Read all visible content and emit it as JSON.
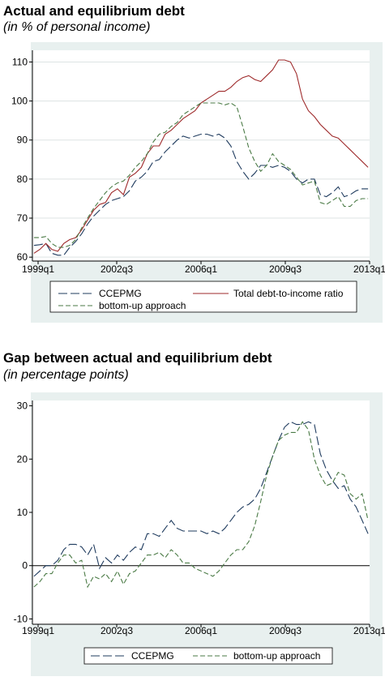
{
  "chart_data": [
    {
      "type": "line",
      "title": "Actual and equilibrium debt",
      "subtitle": "(in % of personal income)",
      "x_ticks": [
        "1999q1",
        "2002q3",
        "2006q1",
        "2009q3",
        "2013q1"
      ],
      "y_ticks": [
        60,
        70,
        80,
        90,
        100,
        110
      ],
      "xlim": [
        0,
        56
      ],
      "ylim": [
        59,
        113
      ],
      "grid": true,
      "legend": "bottom",
      "series": [
        {
          "name": "CCEPMG",
          "style": "longdash",
          "color": "#1f3b5e",
          "values": [
            63.0,
            63.2,
            63.5,
            61.0,
            60.5,
            60.5,
            62.5,
            64.0,
            66.0,
            68.5,
            70.5,
            72.0,
            73.5,
            74.5,
            75.0,
            75.5,
            77.0,
            79.5,
            80.5,
            82.0,
            84.5,
            85.0,
            87.0,
            88.5,
            90.0,
            91.0,
            90.5,
            91.0,
            91.5,
            91.5,
            91.0,
            91.5,
            90.5,
            88.5,
            84.5,
            82.0,
            80.0,
            81.5,
            83.5,
            83.5,
            83.0,
            83.5,
            83.0,
            82.0,
            80.0,
            79.0,
            80.0,
            80.0,
            76.0,
            75.5,
            76.5,
            78.0,
            75.5,
            76.0,
            77.0,
            77.5,
            77.5
          ]
        },
        {
          "name": "Total debt-to-income ratio",
          "style": "solid",
          "color": "#9e2a2b",
          "values": [
            61.0,
            62.0,
            63.5,
            62.0,
            61.5,
            63.5,
            64.5,
            65.0,
            67.0,
            69.5,
            72.0,
            73.5,
            74.0,
            76.5,
            77.5,
            76.0,
            80.5,
            81.5,
            83.0,
            86.5,
            88.5,
            88.5,
            91.5,
            92.5,
            94.0,
            95.5,
            96.5,
            97.5,
            99.5,
            100.5,
            101.5,
            102.5,
            102.5,
            103.5,
            105.0,
            106.0,
            106.5,
            105.5,
            105.0,
            106.5,
            108.0,
            110.5,
            110.5,
            110.0,
            107.0,
            100.5,
            97.5,
            96.0,
            94.0,
            92.5,
            91.0,
            90.5,
            89.0,
            87.5,
            86.0,
            84.5,
            83.0
          ]
        },
        {
          "name": "bottom-up approach",
          "style": "dash",
          "color": "#4a7a45",
          "values": [
            65.0,
            65.0,
            65.3,
            63.5,
            62.5,
            62.5,
            63.0,
            64.5,
            67.5,
            70.0,
            72.5,
            74.5,
            76.5,
            78.0,
            79.0,
            79.5,
            81.0,
            83.0,
            84.5,
            86.5,
            89.5,
            91.5,
            92.0,
            93.5,
            94.5,
            96.5,
            97.5,
            98.5,
            99.5,
            99.5,
            99.5,
            99.5,
            99.0,
            99.5,
            98.5,
            93.5,
            88.0,
            84.5,
            82.0,
            83.5,
            86.5,
            84.5,
            83.5,
            82.5,
            80.5,
            78.5,
            79.0,
            79.5,
            74.0,
            73.5,
            74.5,
            75.5,
            73.0,
            73.0,
            74.5,
            75.0,
            75.0
          ]
        }
      ]
    },
    {
      "type": "line",
      "title": "Gap between actual and equilibrium debt",
      "subtitle": "(in percentage points)",
      "x_ticks": [
        "1999q1",
        "2002q3",
        "2006q1",
        "2009q3",
        "2013q1"
      ],
      "y_ticks": [
        -10,
        0,
        10,
        20,
        30
      ],
      "xlim": [
        0,
        56
      ],
      "ylim": [
        -11,
        31
      ],
      "zero_line": true,
      "legend": "bottom",
      "series": [
        {
          "name": "CCEPMG",
          "style": "longdash",
          "color": "#1f3b5e",
          "values": [
            -2.0,
            -1.0,
            0.0,
            0.0,
            1.0,
            3.0,
            4.0,
            4.0,
            3.5,
            2.0,
            4.0,
            -0.5,
            1.5,
            0.5,
            2.0,
            1.0,
            2.5,
            3.5,
            3.0,
            6.0,
            6.0,
            5.5,
            7.0,
            8.5,
            7.0,
            6.5,
            6.5,
            6.5,
            6.5,
            6.0,
            6.5,
            6.0,
            7.0,
            8.5,
            10.0,
            11.0,
            11.5,
            12.5,
            14.5,
            17.5,
            20.5,
            23.5,
            26.0,
            27.0,
            26.5,
            26.5,
            27.0,
            26.5,
            21.0,
            18.0,
            16.0,
            14.5,
            15.0,
            12.5,
            11.0,
            8.5,
            6.0
          ]
        },
        {
          "name": "bottom-up approach",
          "style": "dash",
          "color": "#4a7a45",
          "values": [
            -4.0,
            -3.0,
            -1.5,
            -1.5,
            0.5,
            2.0,
            2.0,
            0.5,
            1.0,
            -4.0,
            -2.0,
            -2.5,
            -1.5,
            -3.0,
            -1.0,
            -3.5,
            -1.5,
            -1.0,
            0.5,
            2.0,
            2.0,
            2.5,
            1.5,
            3.0,
            2.0,
            0.5,
            0.5,
            -0.5,
            -1.0,
            -1.5,
            -2.0,
            -1.0,
            0.5,
            2.0,
            3.0,
            3.0,
            4.5,
            7.5,
            12.0,
            17.0,
            20.5,
            23.5,
            24.5,
            25.0,
            25.0,
            27.0,
            25.5,
            20.0,
            17.0,
            15.0,
            15.5,
            17.5,
            17.0,
            13.5,
            12.5,
            13.5,
            8.5
          ]
        }
      ]
    }
  ]
}
